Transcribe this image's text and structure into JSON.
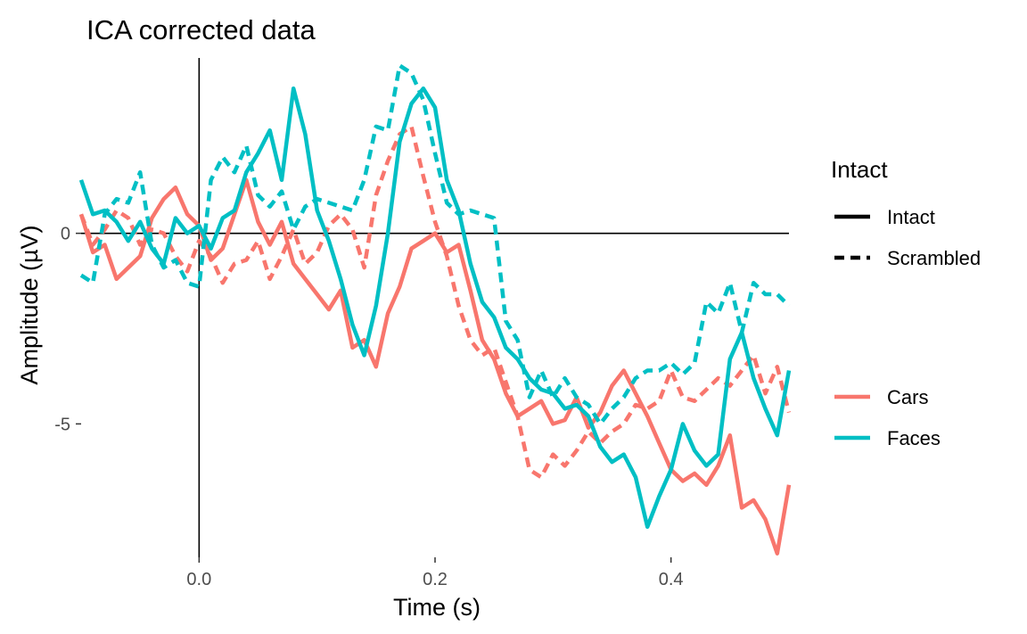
{
  "chart_data": {
    "type": "line",
    "title": "ICA corrected data",
    "xlabel": "Time (s)",
    "ylabel": "Amplitude (µV)",
    "xlim": [
      -0.1,
      0.5
    ],
    "ylim": [
      -8.5,
      4.6
    ],
    "xticks": [
      0.0,
      0.2,
      0.4
    ],
    "xtick_labels": [
      "0.0",
      "0.2",
      "0.4"
    ],
    "yticks": [
      0,
      -5
    ],
    "ytick_labels": [
      "0",
      "-5"
    ],
    "grid": false,
    "reference_lines": {
      "x": 0,
      "y": 0
    },
    "legend": {
      "position": "right",
      "linetype_title": "Intact",
      "linetype_entries": [
        {
          "label": "Intact",
          "dash": "solid"
        },
        {
          "label": "Scrambled",
          "dash": "dashed"
        }
      ],
      "color_entries": [
        {
          "label": "Cars",
          "color": "#F8766D"
        },
        {
          "label": "Faces",
          "color": "#00BFC4"
        }
      ]
    },
    "x": [
      -0.1,
      -0.09,
      -0.08,
      -0.07,
      -0.06,
      -0.05,
      -0.04,
      -0.03,
      -0.02,
      -0.01,
      0.0,
      0.01,
      0.02,
      0.03,
      0.04,
      0.05,
      0.06,
      0.07,
      0.08,
      0.09,
      0.1,
      0.11,
      0.12,
      0.13,
      0.14,
      0.15,
      0.16,
      0.17,
      0.18,
      0.19,
      0.2,
      0.21,
      0.22,
      0.23,
      0.24,
      0.25,
      0.26,
      0.27,
      0.28,
      0.29,
      0.3,
      0.31,
      0.32,
      0.33,
      0.34,
      0.35,
      0.36,
      0.37,
      0.38,
      0.39,
      0.4,
      0.41,
      0.42,
      0.43,
      0.44,
      0.45,
      0.46,
      0.47,
      0.48,
      0.49,
      0.5
    ],
    "series": [
      {
        "name": "Cars",
        "condition": "Intact",
        "color": "#F8766D",
        "dash": "solid",
        "values": [
          0.5,
          -0.5,
          -0.3,
          -1.2,
          -0.9,
          -0.6,
          0.4,
          0.9,
          1.2,
          0.5,
          0.2,
          -0.7,
          -0.4,
          0.5,
          1.4,
          0.3,
          -0.3,
          0.3,
          -0.8,
          -1.2,
          -1.6,
          -2.0,
          -1.5,
          -3.0,
          -2.8,
          -3.5,
          -2.1,
          -1.4,
          -0.4,
          -0.2,
          0.0,
          -0.5,
          -0.3,
          -1.5,
          -2.8,
          -3.3,
          -4.2,
          -4.8,
          -4.6,
          -4.4,
          -5.0,
          -4.9,
          -4.3,
          -5.1,
          -4.7,
          -4.0,
          -3.6,
          -4.2,
          -4.8,
          -5.5,
          -6.2,
          -6.5,
          -6.3,
          -6.6,
          -6.1,
          -5.3,
          -7.2,
          -7.0,
          -7.5,
          -8.4,
          -6.6
        ]
      },
      {
        "name": "Cars",
        "condition": "Scrambled",
        "color": "#F8766D",
        "dash": "dashed",
        "values": [
          0.5,
          -0.3,
          0.1,
          0.6,
          0.4,
          -0.3,
          0.1,
          0.0,
          -0.6,
          -1.0,
          -0.2,
          -0.6,
          -1.3,
          -0.8,
          -0.7,
          -0.2,
          -1.2,
          -0.6,
          0.1,
          -0.8,
          -0.5,
          0.2,
          0.5,
          0.1,
          -0.9,
          1.0,
          1.9,
          2.6,
          2.8,
          1.5,
          0.3,
          -0.6,
          -1.9,
          -2.8,
          -3.2,
          -3.0,
          -3.9,
          -4.8,
          -6.2,
          -6.4,
          -5.8,
          -6.1,
          -5.7,
          -5.2,
          -5.5,
          -5.2,
          -5.0,
          -4.5,
          -4.6,
          -4.4,
          -3.6,
          -4.3,
          -4.4,
          -4.1,
          -3.8,
          -4.0,
          -3.6,
          -3.2,
          -4.2,
          -3.5,
          -4.7
        ]
      },
      {
        "name": "Faces",
        "condition": "Intact",
        "color": "#00BFC4",
        "dash": "solid",
        "values": [
          1.4,
          0.5,
          0.6,
          0.3,
          -0.2,
          0.3,
          -0.4,
          -0.8,
          0.4,
          0.0,
          0.2,
          -0.4,
          0.4,
          0.6,
          1.6,
          2.1,
          2.7,
          1.4,
          3.8,
          2.6,
          0.6,
          -0.2,
          -1.2,
          -2.4,
          -3.2,
          -1.9,
          0.0,
          2.4,
          3.4,
          3.8,
          3.3,
          1.4,
          0.6,
          -0.8,
          -1.8,
          -2.2,
          -3.0,
          -3.3,
          -3.8,
          -4.1,
          -4.2,
          -4.6,
          -4.5,
          -4.8,
          -5.6,
          -6.0,
          -5.8,
          -6.4,
          -7.7,
          -6.9,
          -6.2,
          -5.0,
          -5.7,
          -6.1,
          -5.8,
          -3.3,
          -2.6,
          -3.8,
          -4.6,
          -5.3,
          -3.6
        ]
      },
      {
        "name": "Faces",
        "condition": "Scrambled",
        "color": "#00BFC4",
        "dash": "dashed",
        "values": [
          -1.1,
          -1.3,
          0.5,
          0.9,
          0.8,
          1.6,
          -0.3,
          -0.9,
          -0.7,
          -1.3,
          -1.4,
          1.4,
          2.0,
          1.6,
          2.3,
          1.0,
          0.7,
          1.1,
          0.1,
          0.7,
          0.9,
          0.8,
          0.7,
          0.6,
          1.4,
          2.8,
          2.7,
          4.4,
          4.2,
          3.5,
          2.1,
          0.8,
          0.5,
          0.6,
          0.5,
          0.4,
          -2.3,
          -2.8,
          -4.3,
          -3.6,
          -4.3,
          -3.8,
          -4.3,
          -4.5,
          -5.0,
          -4.6,
          -4.3,
          -3.8,
          -3.6,
          -3.6,
          -3.4,
          -3.7,
          -3.4,
          -1.8,
          -2.1,
          -1.3,
          -2.6,
          -1.3,
          -1.6,
          -1.6,
          -1.9
        ]
      }
    ]
  }
}
